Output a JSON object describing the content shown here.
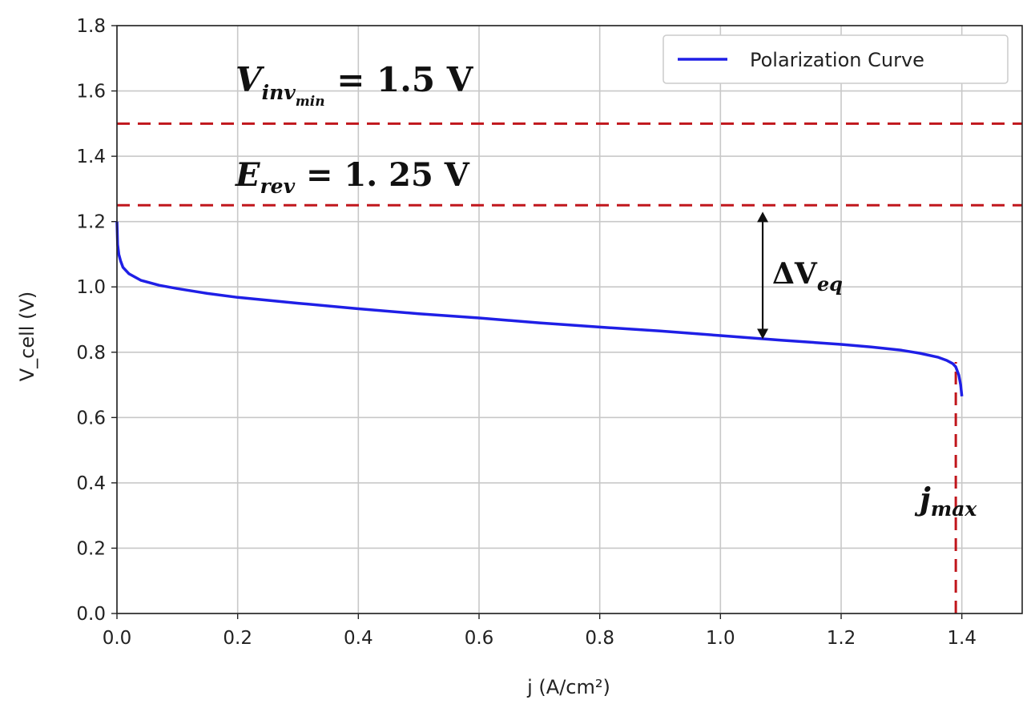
{
  "chart_data": {
    "type": "line",
    "xlabel": "j (A/cm²)",
    "ylabel": "V_cell (V)",
    "xlim": [
      0.0,
      1.5
    ],
    "ylim": [
      0.0,
      1.8
    ],
    "xticks": [
      "0.0",
      "0.2",
      "0.4",
      "0.6",
      "0.8",
      "1.0",
      "1.2",
      "1.4"
    ],
    "yticks": [
      "0.0",
      "0.2",
      "0.4",
      "0.6",
      "0.8",
      "1.0",
      "1.2",
      "1.4",
      "1.6",
      "1.8"
    ],
    "grid": true,
    "legend_position": "upper-right",
    "series": [
      {
        "name": "Polarization Curve",
        "color": "#1f1fe6",
        "x": [
          0.0,
          0.001,
          0.003,
          0.006,
          0.01,
          0.02,
          0.04,
          0.07,
          0.1,
          0.15,
          0.2,
          0.3,
          0.4,
          0.5,
          0.6,
          0.7,
          0.8,
          0.9,
          1.0,
          1.1,
          1.2,
          1.25,
          1.3,
          1.33,
          1.36,
          1.375,
          1.385,
          1.39,
          1.395,
          1.398,
          1.4
        ],
        "y": [
          1.2,
          1.13,
          1.1,
          1.08,
          1.06,
          1.04,
          1.02,
          1.005,
          0.995,
          0.98,
          0.968,
          0.95,
          0.933,
          0.918,
          0.905,
          0.89,
          0.877,
          0.865,
          0.851,
          0.837,
          0.824,
          0.816,
          0.806,
          0.797,
          0.785,
          0.775,
          0.765,
          0.755,
          0.73,
          0.7,
          0.665
        ]
      }
    ],
    "reference_lines": [
      {
        "orientation": "horizontal",
        "y": 1.5,
        "color": "#c0161c"
      },
      {
        "orientation": "horizontal",
        "y": 1.25,
        "color": "#c0161c"
      },
      {
        "orientation": "vertical",
        "x": 1.39,
        "y_from": 0.0,
        "y_to": 0.77,
        "color": "#c0161c"
      }
    ],
    "arrow": {
      "x": 1.07,
      "y_from": 1.23,
      "y_to": 0.84
    },
    "annotations": {
      "v_inv_main": "V",
      "v_inv_sub": "inv",
      "v_inv_subsub": "min",
      "v_inv_value": " = 1.5  V",
      "e_rev_main": "E",
      "e_rev_sub": "rev",
      "e_rev_value": " = 1. 25  V",
      "delta_main": "ΔV",
      "delta_sub": "eq",
      "jmax_main": "j",
      "jmax_sub": "max"
    }
  }
}
